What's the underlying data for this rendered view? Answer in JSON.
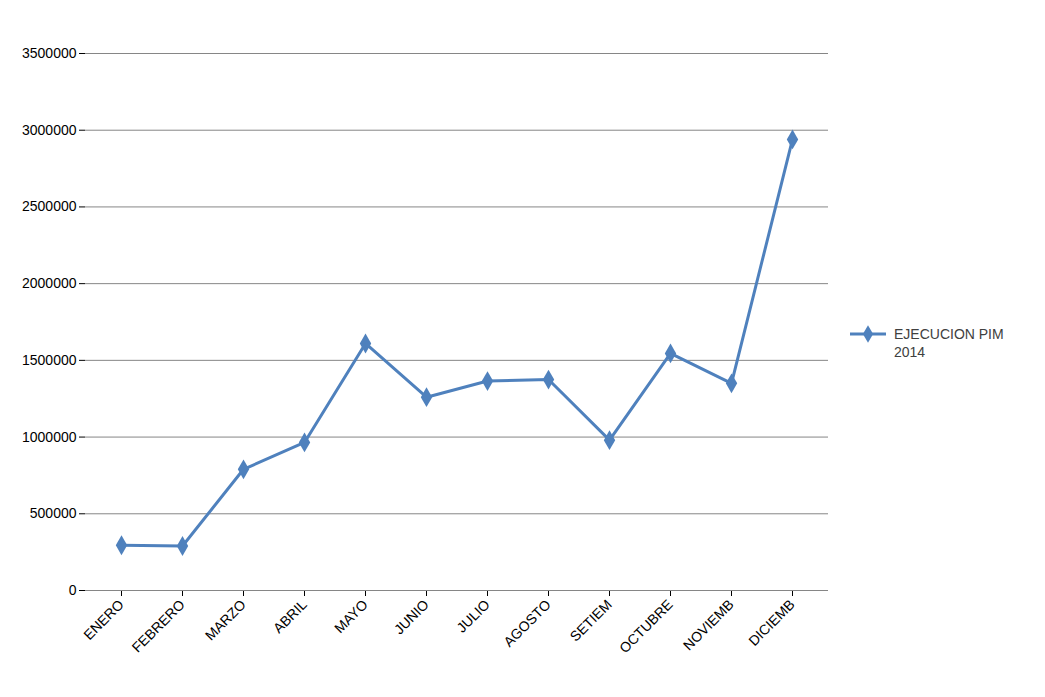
{
  "chart_data": {
    "type": "line",
    "categories": [
      "ENERO",
      "FEBRERO",
      "MARZO",
      "ABRIL",
      "MAYO",
      "JUNIO",
      "JULIO",
      "AGOSTO",
      "SETIEM",
      "OCTUBRE",
      "NOVIEMB",
      "DICIEMB"
    ],
    "series": [
      {
        "name": "EJECUCION PIM 2014",
        "color": "#4f81bd",
        "marker": "diamond",
        "values": [
          295000,
          290000,
          790000,
          965000,
          1610000,
          1260000,
          1365000,
          1375000,
          980000,
          1545000,
          1350000,
          2940000
        ]
      }
    ],
    "ylim": [
      0,
      3500000
    ],
    "yticks": [
      0,
      500000,
      1000000,
      1500000,
      2000000,
      2500000,
      3000000,
      3500000
    ],
    "grid": true,
    "legend": "right"
  }
}
